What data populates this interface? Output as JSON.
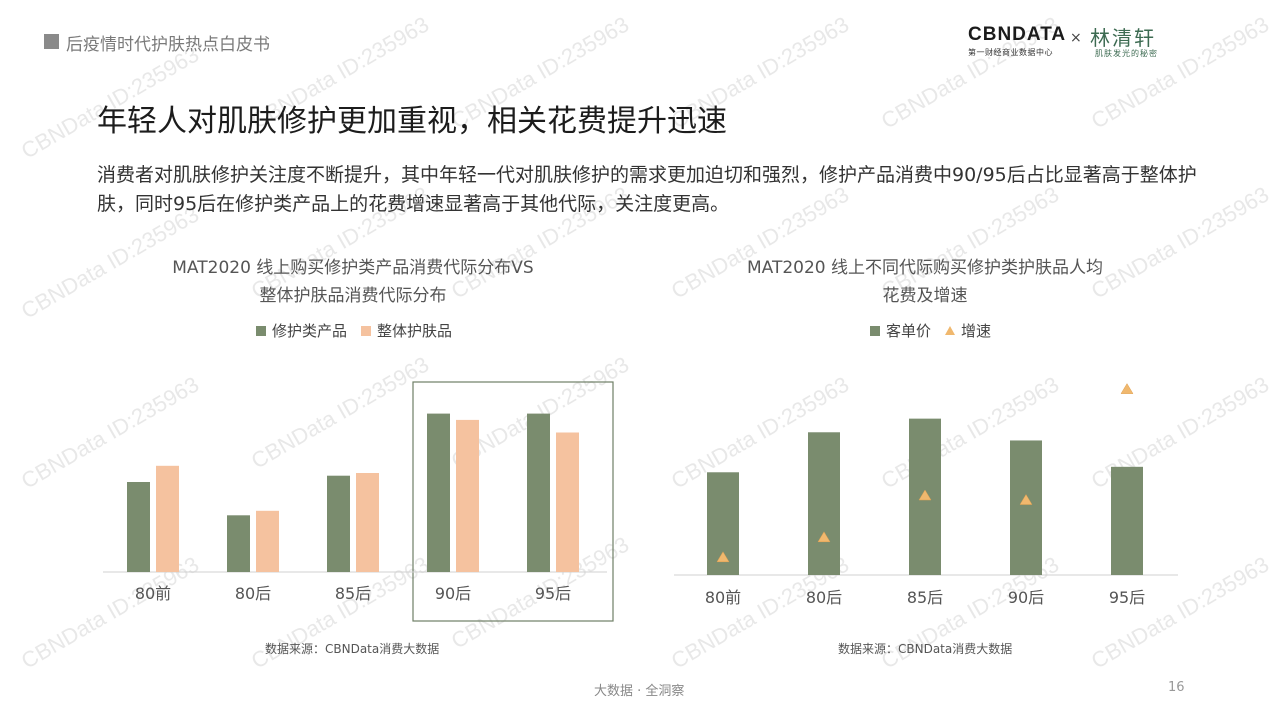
{
  "header": {
    "title": "后疫情时代护肤热点白皮书"
  },
  "logos": {
    "cbn_main": "CBNDATA",
    "cbn_sub": "第一财经商业数据中心",
    "cross": "×",
    "partner_main": "林清轩",
    "partner_sub": "肌肤发光的秘密"
  },
  "title": "年轻人对肌肤修护更加重视，相关花费提升迅速",
  "description": "消费者对肌肤修护关注度不断提升，其中年轻一代对肌肤修护的需求更加迫切和强烈，修护产品消费中90/95后占比显著高于整体护肤，同时95后在修护类产品上的花费增速显著高于其他代际，关注度更高。",
  "colors": {
    "green": "#7a8c6e",
    "peach": "#f5c29f",
    "triangle": "#f0b86e"
  },
  "chart_data": [
    {
      "type": "bar",
      "title_lines": [
        "MAT2020 线上购买修护类产品消费代际分布VS",
        "整体护肤品消费代际分布"
      ],
      "categories": [
        "80前",
        "80后",
        "85后",
        "90后",
        "95后"
      ],
      "series": [
        {
          "name": "修护类产品",
          "values": [
            100,
            63,
            107,
            176,
            176
          ]
        },
        {
          "name": "整体护肤品",
          "values": [
            118,
            68,
            110,
            169,
            155
          ]
        }
      ],
      "highlighted_categories": [
        "90后",
        "95后"
      ],
      "ylim": [
        0,
        200
      ],
      "source": "数据来源：CBNData消费大数据"
    },
    {
      "type": "bar",
      "title_lines": [
        "MAT2020 线上不同代际购买修护类护肤品人均",
        "花费及增速"
      ],
      "categories": [
        "80前",
        "80后",
        "85后",
        "90后",
        "95后"
      ],
      "series": [
        {
          "name": "客单价",
          "values": [
            113,
            157,
            172,
            148,
            119
          ]
        },
        {
          "name": "增速",
          "marker": "triangle",
          "values": [
            20,
            42,
            88,
            83,
            205
          ]
        }
      ],
      "ylim": [
        0,
        220
      ],
      "source": "数据来源：CBNData消费大数据"
    }
  ],
  "footer": {
    "text": "大数据 · 全洞察",
    "page": "16"
  },
  "watermark": "CBNData ID:235963"
}
